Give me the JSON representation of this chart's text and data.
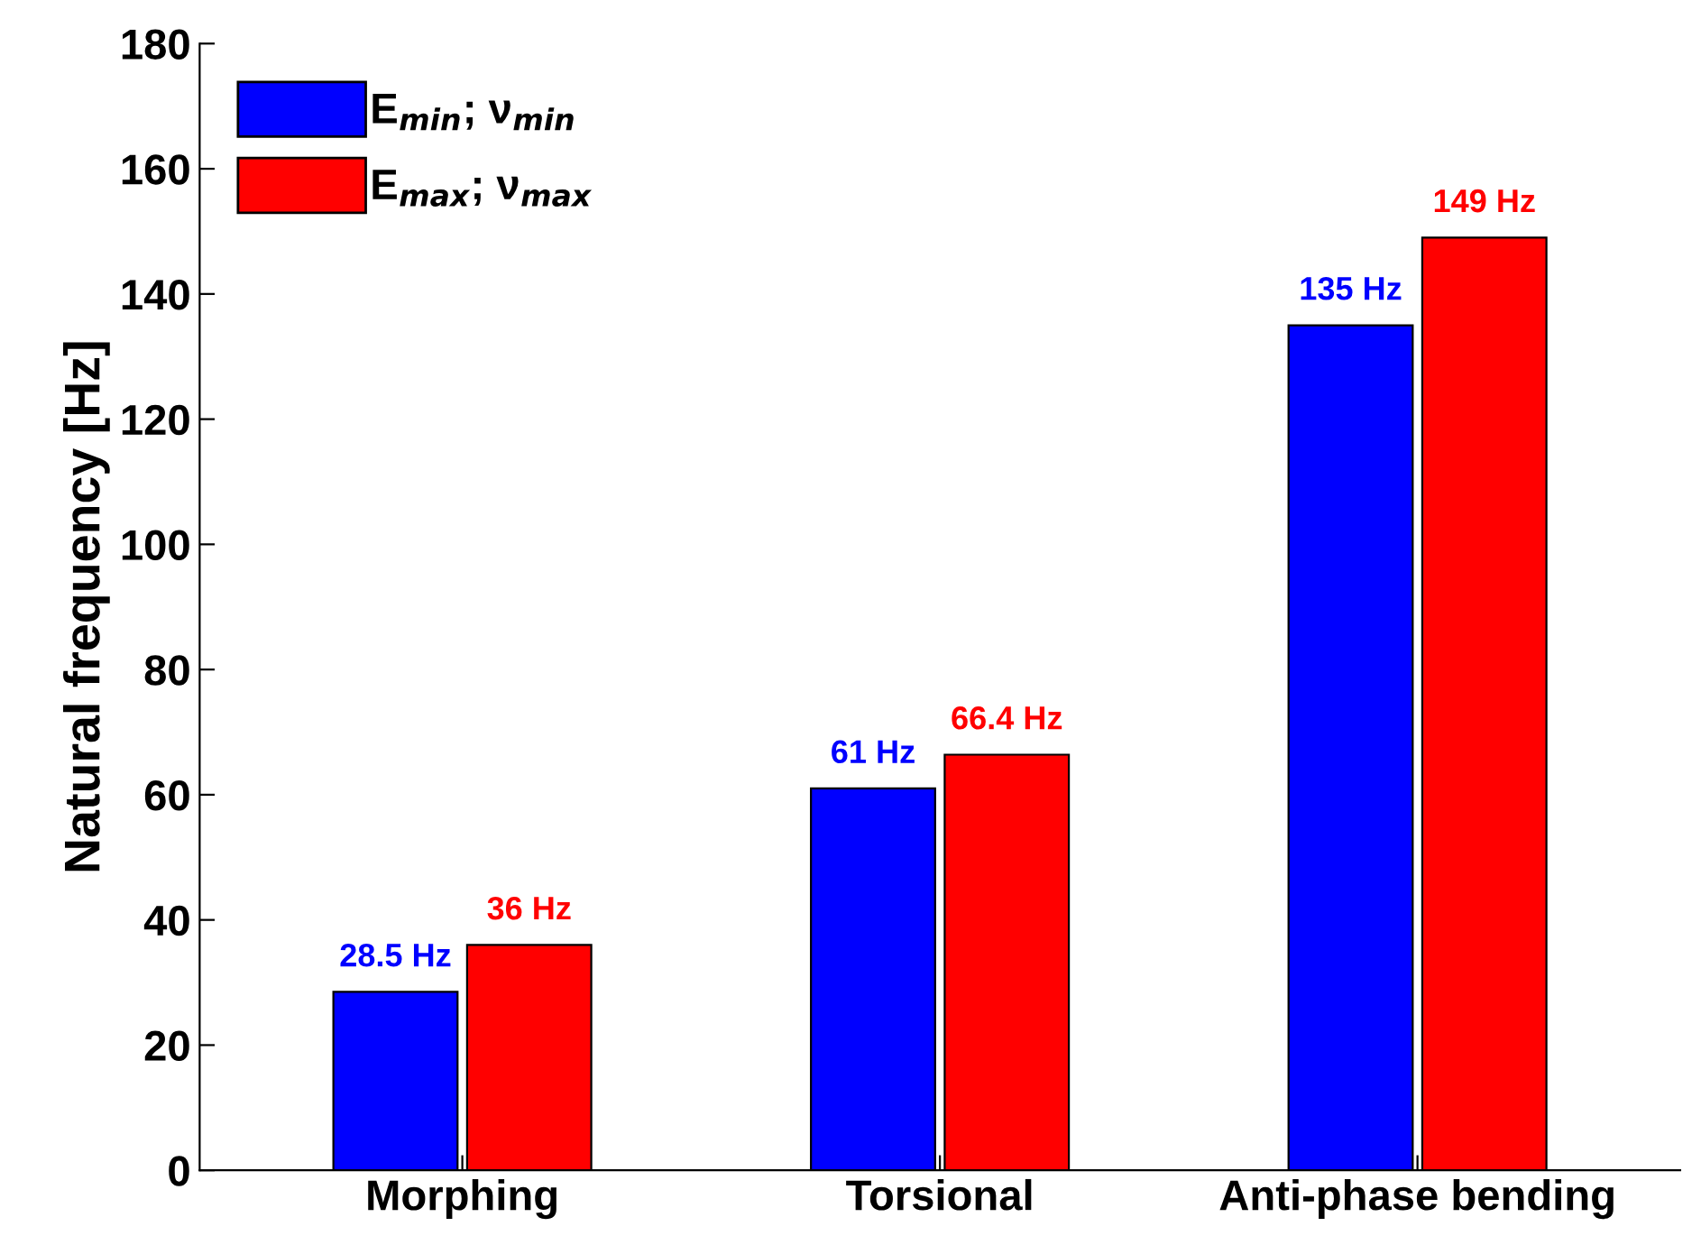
{
  "chart_data": {
    "type": "bar",
    "ylabel": "Natural frequency [Hz]",
    "categories": [
      "Morphing",
      "Torsional",
      "Anti-phase bending"
    ],
    "series": [
      {
        "name": "E$_{min}$; ν$_{min}$",
        "color": "#0000ff",
        "values": [
          28.5,
          61,
          135
        ],
        "value_labels": [
          "28.5 Hz",
          "61 Hz",
          "135 Hz"
        ]
      },
      {
        "name": "E$_{max}$; ν$_{max}$",
        "color": "#ff0000",
        "values": [
          36,
          66.4,
          149
        ],
        "value_labels": [
          "36 Hz",
          "66.4 Hz",
          "149 Hz"
        ]
      }
    ],
    "ylim": [
      0,
      180
    ],
    "yticks": [
      0,
      20,
      40,
      60,
      80,
      100,
      120,
      140,
      160,
      180
    ],
    "grid": false,
    "legend": "top left"
  }
}
